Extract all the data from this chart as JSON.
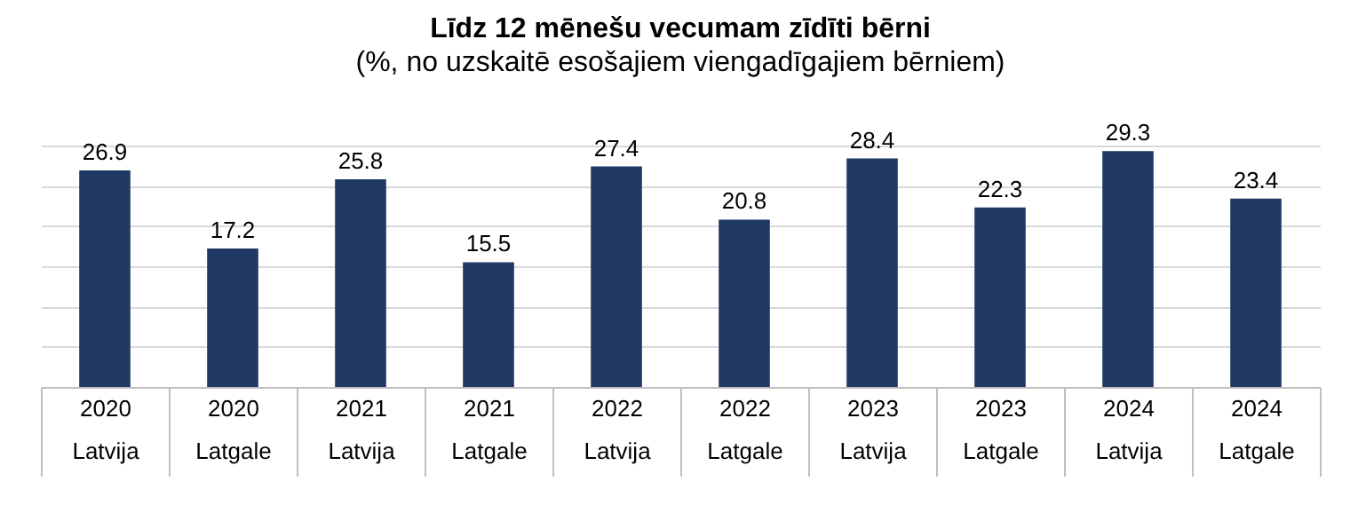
{
  "chart_data": {
    "type": "bar",
    "title": "Līdz 12 mēnešu vecumam zīdīti bērni",
    "subtitle": "(%, no uzskaitē esošajiem viengadīgajiem bērniem)",
    "categories": [
      "2020\nLatvija",
      "2020\nLatgale",
      "2021\nLatvija",
      "2021\nLatgale",
      "2022\nLatvija",
      "2022\nLatgale",
      "2023\nLatvija",
      "2023\nLatgale",
      "2024\nLatvija",
      "2024\nLatgale"
    ],
    "values": [
      26.9,
      17.2,
      25.8,
      15.5,
      27.4,
      20.8,
      28.4,
      22.3,
      29.3,
      23.4
    ],
    "color": "#1f3864",
    "grid": "y",
    "tick_labels": "x",
    "data_labels": true
  }
}
